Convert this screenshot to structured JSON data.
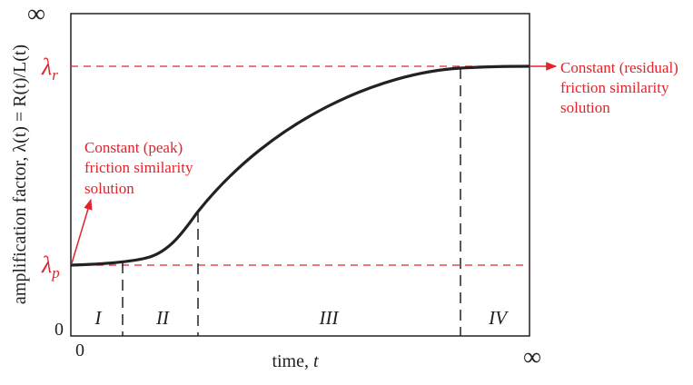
{
  "x_axis": {
    "label": "time, ",
    "label_var": "t",
    "start": "0",
    "end": "∞"
  },
  "y_axis": {
    "label": "amplification factor, λ(t) = R(t)/L(t)",
    "start": "0",
    "end": "∞"
  },
  "levels": {
    "residual": {
      "symbol": "λ",
      "subscript": "r"
    },
    "peak": {
      "symbol": "λ",
      "subscript": "p"
    }
  },
  "regions": [
    "I",
    "II",
    "III",
    "IV"
  ],
  "annotations": {
    "peak": [
      "Constant (peak)",
      "friction similarity",
      "solution"
    ],
    "residual": [
      "Constant (residual)",
      "friction similarity",
      "solution"
    ]
  }
}
